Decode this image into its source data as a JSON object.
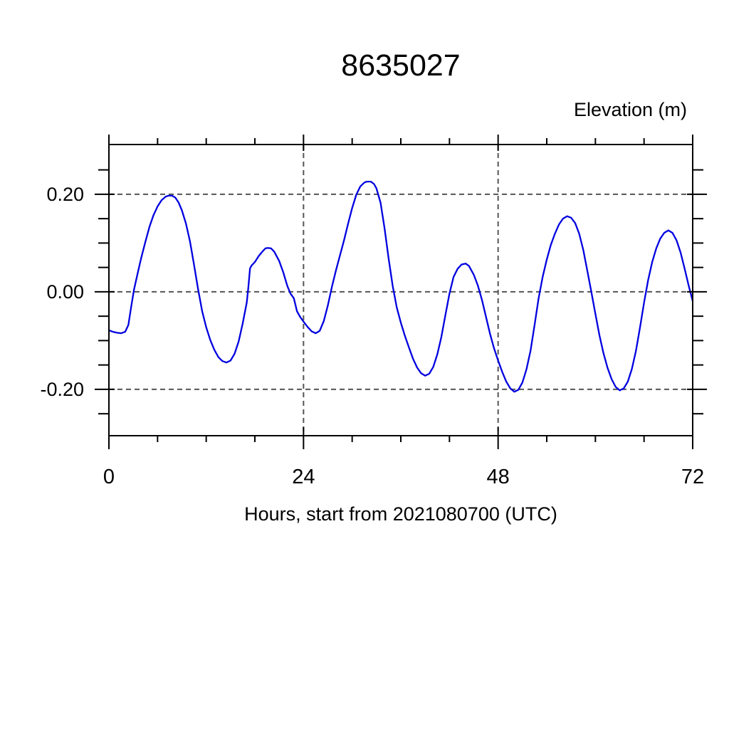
{
  "page": {
    "background": "#ffffff"
  },
  "chart_data": {
    "type": "line",
    "title": "8635027",
    "ylabel": "Elevation (m)",
    "xlabel": "Hours, start from 2021080700 (UTC)",
    "xlim": [
      0,
      72
    ],
    "ylim": [
      -0.295,
      0.302
    ],
    "x_major_ticks": [
      0,
      24,
      48,
      72
    ],
    "x_major_tick_labels": [
      "0",
      "24",
      "48",
      "72"
    ],
    "x_minor_ticks": [
      6,
      12,
      18,
      30,
      36,
      42,
      54,
      60,
      66
    ],
    "y_major_ticks": [
      0.2,
      0.0,
      -0.2
    ],
    "y_major_tick_labels": [
      "0.20",
      "0.00",
      "-0.20"
    ],
    "y_minor_ticks": [
      0.25,
      0.15,
      0.1,
      0.05,
      -0.05,
      -0.1,
      -0.15,
      -0.25
    ],
    "grid": {
      "x_lines_at": [
        24,
        48
      ],
      "y_lines_at": [
        0.2,
        0.0,
        -0.2
      ],
      "style": "dashed",
      "color": "#555555"
    },
    "legend": "none",
    "line_color": "#0000e0",
    "frame_color": "#000000",
    "series": [
      {
        "name": "elevation",
        "points": [
          [
            0,
            -0.079
          ],
          [
            0.5,
            -0.082
          ],
          [
            1,
            -0.084
          ],
          [
            1.5,
            -0.085
          ],
          [
            2,
            -0.082
          ],
          [
            2.4,
            -0.068
          ],
          [
            2.8,
            -0.025
          ],
          [
            3.1,
            0.005
          ],
          [
            3.6,
            0.042
          ],
          [
            4,
            0.071
          ],
          [
            4.5,
            0.103
          ],
          [
            5,
            0.133
          ],
          [
            5.5,
            0.157
          ],
          [
            6,
            0.175
          ],
          [
            6.5,
            0.188
          ],
          [
            7,
            0.195
          ],
          [
            7.3,
            0.197
          ],
          [
            7.8,
            0.197
          ],
          [
            8.2,
            0.193
          ],
          [
            8.6,
            0.183
          ],
          [
            9,
            0.167
          ],
          [
            9.5,
            0.14
          ],
          [
            10,
            0.103
          ],
          [
            10.5,
            0.055
          ],
          [
            11,
            0.005
          ],
          [
            11.5,
            -0.04
          ],
          [
            12,
            -0.073
          ],
          [
            12.5,
            -0.099
          ],
          [
            13,
            -0.119
          ],
          [
            13.5,
            -0.134
          ],
          [
            14,
            -0.142
          ],
          [
            14.5,
            -0.145
          ],
          [
            15,
            -0.141
          ],
          [
            15.5,
            -0.127
          ],
          [
            16,
            -0.102
          ],
          [
            16.5,
            -0.065
          ],
          [
            17,
            -0.022
          ],
          [
            17.2,
            0.01
          ],
          [
            17.4,
            0.048
          ],
          [
            17.6,
            0.054
          ],
          [
            18,
            0.061
          ],
          [
            18.5,
            0.074
          ],
          [
            19,
            0.084
          ],
          [
            19.3,
            0.089
          ],
          [
            19.6,
            0.09
          ],
          [
            20,
            0.089
          ],
          [
            20.4,
            0.082
          ],
          [
            21,
            0.063
          ],
          [
            21.5,
            0.04
          ],
          [
            22,
            0.012
          ],
          [
            22.4,
            -0.004
          ],
          [
            22.8,
            -0.013
          ],
          [
            23.2,
            -0.04
          ],
          [
            23.6,
            -0.052
          ],
          [
            24,
            -0.061
          ],
          [
            24.5,
            -0.072
          ],
          [
            25,
            -0.081
          ],
          [
            25.5,
            -0.085
          ],
          [
            26,
            -0.08
          ],
          [
            26.5,
            -0.06
          ],
          [
            27,
            -0.028
          ],
          [
            27.5,
            0.01
          ],
          [
            28,
            0.044
          ],
          [
            28.5,
            0.075
          ],
          [
            29,
            0.106
          ],
          [
            29.5,
            0.14
          ],
          [
            30,
            0.172
          ],
          [
            30.5,
            0.199
          ],
          [
            31,
            0.216
          ],
          [
            31.5,
            0.224
          ],
          [
            31.8,
            0.226
          ],
          [
            32.3,
            0.226
          ],
          [
            32.7,
            0.221
          ],
          [
            33,
            0.212
          ],
          [
            33.5,
            0.183
          ],
          [
            34,
            0.13
          ],
          [
            34.5,
            0.068
          ],
          [
            35,
            0.012
          ],
          [
            35.5,
            -0.032
          ],
          [
            36,
            -0.063
          ],
          [
            36.5,
            -0.09
          ],
          [
            37,
            -0.114
          ],
          [
            37.5,
            -0.137
          ],
          [
            38,
            -0.155
          ],
          [
            38.5,
            -0.167
          ],
          [
            39,
            -0.172
          ],
          [
            39.5,
            -0.168
          ],
          [
            40,
            -0.154
          ],
          [
            40.5,
            -0.128
          ],
          [
            41,
            -0.093
          ],
          [
            41.5,
            -0.048
          ],
          [
            42,
            -0.004
          ],
          [
            42.5,
            0.03
          ],
          [
            43,
            0.047
          ],
          [
            43.5,
            0.056
          ],
          [
            44,
            0.058
          ],
          [
            44.4,
            0.053
          ],
          [
            45,
            0.035
          ],
          [
            45.5,
            0.013
          ],
          [
            46,
            -0.016
          ],
          [
            46.5,
            -0.051
          ],
          [
            47,
            -0.086
          ],
          [
            47.5,
            -0.116
          ],
          [
            48,
            -0.141
          ],
          [
            48.5,
            -0.164
          ],
          [
            49,
            -0.184
          ],
          [
            49.5,
            -0.198
          ],
          [
            50,
            -0.205
          ],
          [
            50.5,
            -0.201
          ],
          [
            51,
            -0.186
          ],
          [
            51.5,
            -0.159
          ],
          [
            52,
            -0.121
          ],
          [
            52.5,
            -0.068
          ],
          [
            53,
            -0.013
          ],
          [
            53.5,
            0.031
          ],
          [
            54,
            0.066
          ],
          [
            54.5,
            0.096
          ],
          [
            55,
            0.119
          ],
          [
            55.5,
            0.138
          ],
          [
            56,
            0.15
          ],
          [
            56.5,
            0.155
          ],
          [
            57,
            0.152
          ],
          [
            57.5,
            0.141
          ],
          [
            58,
            0.119
          ],
          [
            58.5,
            0.086
          ],
          [
            59,
            0.044
          ],
          [
            59.5,
            0.0
          ],
          [
            60,
            -0.045
          ],
          [
            60.5,
            -0.089
          ],
          [
            61,
            -0.126
          ],
          [
            61.5,
            -0.156
          ],
          [
            62,
            -0.179
          ],
          [
            62.5,
            -0.195
          ],
          [
            63,
            -0.202
          ],
          [
            63.5,
            -0.198
          ],
          [
            64,
            -0.184
          ],
          [
            64.5,
            -0.158
          ],
          [
            65,
            -0.121
          ],
          [
            65.5,
            -0.073
          ],
          [
            66,
            -0.022
          ],
          [
            66.5,
            0.024
          ],
          [
            67,
            0.061
          ],
          [
            67.5,
            0.089
          ],
          [
            68,
            0.109
          ],
          [
            68.5,
            0.121
          ],
          [
            69,
            0.126
          ],
          [
            69.5,
            0.121
          ],
          [
            70,
            0.106
          ],
          [
            70.5,
            0.081
          ],
          [
            71,
            0.048
          ],
          [
            71.5,
            0.013
          ],
          [
            72,
            -0.019
          ]
        ]
      }
    ]
  }
}
